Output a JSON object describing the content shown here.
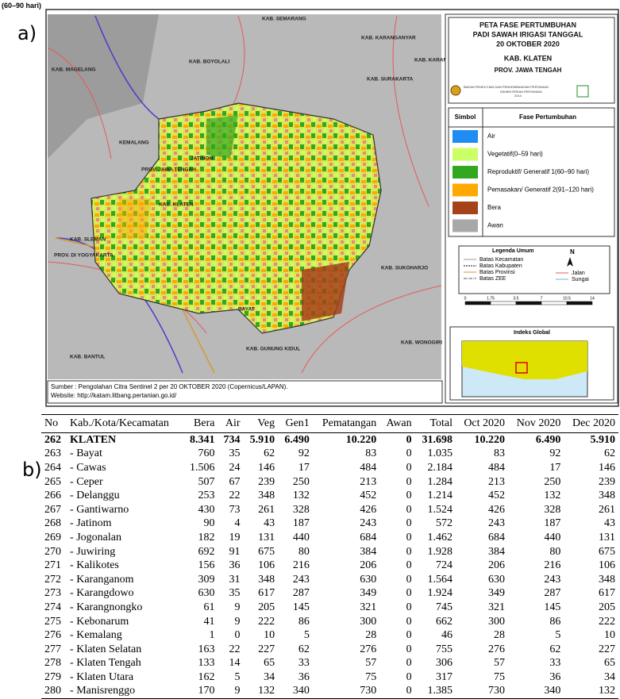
{
  "top_label": "(60–90 hari)",
  "panels": {
    "a": "a)",
    "b": "b)"
  },
  "map": {
    "title": [
      "PETA FASE PERTUMBUHAN",
      "PADI SAWAH IRIGASI TANGGAL",
      "20 OKTOBER 2020"
    ],
    "region": "KAB. KLATEN",
    "province": "PROV. JAWA TENGAH",
    "agency": [
      "BADAN PENELITIAN DAN PENGEMBANGAN PERTANIAN",
      "KEMENTERIAN PERTANIAN",
      "2014"
    ],
    "legend_header": [
      "Simbol",
      "Fase Pertumbuhan"
    ],
    "legend": [
      {
        "label": "Air",
        "color": "#1e8cf0"
      },
      {
        "label": "Vegetatif(0–59 hari)",
        "color": "#ccff66"
      },
      {
        "label": "Reproduktif/ Generatif 1(60–90 hari)",
        "color": "#33a81e"
      },
      {
        "label": "Pemasakan/ Generatif 2(91–120 hari)",
        "color": "#ffa800"
      },
      {
        "label": "Bera",
        "color": "#a5421a"
      },
      {
        "label": "Awan",
        "color": "#a8a8a8"
      }
    ],
    "general_legend_title": "Legenda Umum",
    "general_legend": [
      "Batas Kecamatan",
      "Batas Kabupaten",
      "Batas Provinsi",
      "Batas ZEE",
      "Jalan",
      "Sungai"
    ],
    "north": "N",
    "scale": [
      "0",
      "1.75",
      "3.5",
      "7",
      "10.5",
      "14"
    ],
    "index_title": "Indeks Global",
    "places": [
      "KAB. SEMARANG",
      "KAB. BOYOLALI",
      "KAB. KARANGANYAR",
      "KAB. KARANGANYAR",
      "KAB. SURAKARTA",
      "KAB. MAGELANG",
      "KEMALANG",
      "JATINOM",
      "PROV. JAWA TENGAH",
      "KAB. KLATEN",
      "KAB. SLEMAN",
      "PROV. DI YOGYAKARTA",
      "KAB. SUKOHARJO",
      "KAB. BANTUL",
      "KAB. GUNUNG KIDUL",
      "KAB. WONOGIRI",
      "BAYAT"
    ],
    "source": [
      "Sumber : Pengolahan Citra Sentinel 2 per 20 OKTOBER 2020 (Copernicus/LAPAN).",
      "Website: http://katam.litbang.pertanian.go.id/"
    ]
  },
  "table": {
    "headers": [
      "No",
      "Kab./Kota/Kecamatan",
      "Bera",
      "Air",
      "Veg",
      "Gen1",
      "Pematangan",
      "Awan",
      "Total",
      "Oct 2020",
      "Nov 2020",
      "Dec 2020"
    ],
    "rows": [
      [
        "262",
        "KLATEN",
        "8.341",
        "734",
        "5.910",
        "6.490",
        "10.220",
        "0",
        "31.698",
        "10.220",
        "6.490",
        "5.910"
      ],
      [
        "263",
        "- Bayat",
        "760",
        "35",
        "62",
        "92",
        "83",
        "0",
        "1.035",
        "83",
        "92",
        "62"
      ],
      [
        "264",
        "- Cawas",
        "1.506",
        "24",
        "146",
        "17",
        "484",
        "0",
        "2.184",
        "484",
        "17",
        "146"
      ],
      [
        "265",
        "- Ceper",
        "507",
        "67",
        "239",
        "250",
        "213",
        "0",
        "1.284",
        "213",
        "250",
        "239"
      ],
      [
        "266",
        "- Delanggu",
        "253",
        "22",
        "348",
        "132",
        "452",
        "0",
        "1.214",
        "452",
        "132",
        "348"
      ],
      [
        "267",
        "- Gantiwarno",
        "430",
        "73",
        "261",
        "328",
        "426",
        "0",
        "1.524",
        "426",
        "328",
        "261"
      ],
      [
        "268",
        "- Jatinom",
        "90",
        "4",
        "43",
        "187",
        "243",
        "0",
        "572",
        "243",
        "187",
        "43"
      ],
      [
        "269",
        "- Jogonalan",
        "182",
        "19",
        "131",
        "440",
        "684",
        "0",
        "1.462",
        "684",
        "440",
        "131"
      ],
      [
        "270",
        "- Juwiring",
        "692",
        "91",
        "675",
        "80",
        "384",
        "0",
        "1.928",
        "384",
        "80",
        "675"
      ],
      [
        "271",
        "- Kalikotes",
        "156",
        "36",
        "106",
        "216",
        "206",
        "0",
        "724",
        "206",
        "216",
        "106"
      ],
      [
        "272",
        "- Karanganom",
        "309",
        "31",
        "348",
        "243",
        "630",
        "0",
        "1.564",
        "630",
        "243",
        "348"
      ],
      [
        "273",
        "- Karangdowo",
        "630",
        "35",
        "617",
        "287",
        "349",
        "0",
        "1.924",
        "349",
        "287",
        "617"
      ],
      [
        "274",
        "- Karangnongko",
        "61",
        "9",
        "205",
        "145",
        "321",
        "0",
        "745",
        "321",
        "145",
        "205"
      ],
      [
        "275",
        "- Kebonarum",
        "41",
        "9",
        "222",
        "86",
        "300",
        "0",
        "662",
        "300",
        "86",
        "222"
      ],
      [
        "276",
        "- Kemalang",
        "1",
        "0",
        "10",
        "5",
        "28",
        "0",
        "46",
        "28",
        "5",
        "10"
      ],
      [
        "277",
        "- Klaten Selatan",
        "163",
        "22",
        "227",
        "62",
        "276",
        "0",
        "755",
        "276",
        "62",
        "227"
      ],
      [
        "278",
        "- Klaten Tengah",
        "133",
        "14",
        "65",
        "33",
        "57",
        "0",
        "306",
        "57",
        "33",
        "65"
      ],
      [
        "279",
        "- Klaten Utara",
        "162",
        "5",
        "34",
        "36",
        "75",
        "0",
        "317",
        "75",
        "36",
        "34"
      ],
      [
        "280",
        "- Manisrenggo",
        "170",
        "9",
        "132",
        "340",
        "730",
        "0",
        "1.385",
        "730",
        "340",
        "132"
      ]
    ]
  }
}
